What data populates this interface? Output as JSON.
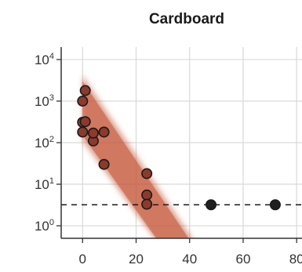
{
  "chart_data": {
    "type": "scatter",
    "title": "Cardboard",
    "xlabel": "",
    "ylabel": "",
    "y_scale": "log",
    "xlim": [
      -8,
      82
    ],
    "ylim": [
      0.5,
      20000
    ],
    "x_ticks": [
      {
        "value": 0,
        "label": "0"
      },
      {
        "value": 20,
        "label": "20"
      },
      {
        "value": 40,
        "label": "40"
      },
      {
        "value": 60,
        "label": "60"
      },
      {
        "value": 80,
        "label": "80"
      }
    ],
    "y_ticks": [
      {
        "value": 1,
        "base": "10",
        "exp": "0"
      },
      {
        "value": 10,
        "base": "10",
        "exp": "1"
      },
      {
        "value": 100,
        "base": "10",
        "exp": "2"
      },
      {
        "value": 1000,
        "base": "10",
        "exp": "3"
      },
      {
        "value": 10000,
        "base": "10",
        "exp": "4"
      }
    ],
    "grid": true,
    "detection_limit": 3.2,
    "series": [
      {
        "kind": "observed",
        "color": "#8c3a2c",
        "points": [
          {
            "x": 0,
            "y": 1000
          },
          {
            "x": 0,
            "y": 310
          },
          {
            "x": 0,
            "y": 180
          },
          {
            "x": 1,
            "y": 1800
          },
          {
            "x": 1,
            "y": 320
          },
          {
            "x": 4,
            "y": 110
          },
          {
            "x": 4,
            "y": 170
          },
          {
            "x": 8,
            "y": 180
          },
          {
            "x": 8,
            "y": 30
          },
          {
            "x": 24,
            "y": 18
          },
          {
            "x": 24,
            "y": 5.5
          },
          {
            "x": 24,
            "y": 3.3
          }
        ]
      },
      {
        "kind": "below-detection",
        "color": "#1f1f1f",
        "points": [
          {
            "x": 48,
            "y": 3.2
          },
          {
            "x": 72,
            "y": 3.2
          }
        ]
      }
    ],
    "fit_band": {
      "color": "#c4583b",
      "x_start": 0,
      "upper_start": 3000,
      "lower_start": 150,
      "upper_end_x": 42,
      "lower_end_x": 30,
      "end_y": 0.5
    }
  }
}
